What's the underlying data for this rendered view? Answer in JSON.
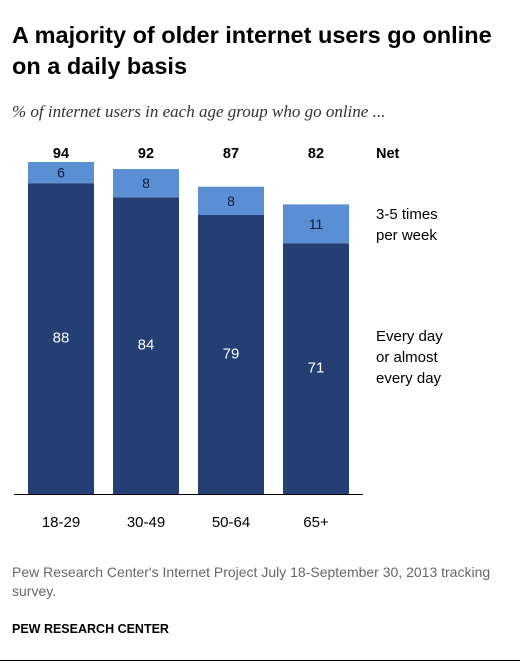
{
  "title": "A majority of older internet users go online on a daily basis",
  "subtitle": "% of internet users in each age group who go online ...",
  "colors": {
    "daily": "#233f74",
    "weekly": "#5b8fd3",
    "text_on_bar": "#ffffff",
    "axis": "#000000"
  },
  "chart_data": {
    "type": "bar",
    "stacked": true,
    "categories": [
      "18-29",
      "30-49",
      "50-64",
      "65+"
    ],
    "series": [
      {
        "name": "Every day or almost every day",
        "values": [
          88,
          84,
          79,
          71
        ]
      },
      {
        "name": "3-5 times per week",
        "values": [
          6,
          8,
          8,
          11
        ]
      }
    ],
    "net_label": "Net",
    "net": [
      94,
      92,
      87,
      82
    ],
    "legend": [
      {
        "key": "weekly",
        "lines": [
          "3-5 times",
          "per week"
        ]
      },
      {
        "key": "daily",
        "lines": [
          "Every day",
          "or almost",
          "every day"
        ]
      }
    ],
    "legend_position": "right",
    "ylim": [
      0,
      94
    ],
    "grid": false
  },
  "source": "Pew Research Center's Internet Project July 18-September 30, 2013 tracking survey.",
  "credit": "PEW RESEARCH CENTER"
}
